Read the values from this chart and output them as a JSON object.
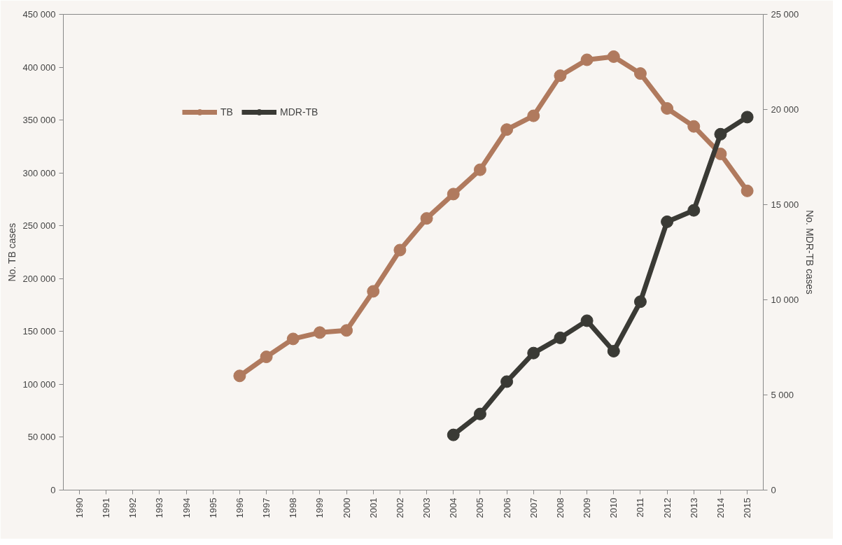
{
  "chart_data": {
    "type": "line",
    "xlabel": null,
    "ylabel": "No. TB cases",
    "y2label": "No. MDR-TB cases",
    "categories": [
      "1990",
      "1991",
      "1992",
      "1993",
      "1994",
      "1995",
      "1996",
      "1997",
      "1998",
      "1999",
      "2000",
      "2001",
      "2002",
      "2003",
      "2004",
      "2005",
      "2006",
      "2007",
      "2008",
      "2009",
      "2010",
      "2011",
      "2012",
      "2013",
      "2014",
      "2015"
    ],
    "series": [
      {
        "name": "TB",
        "color": "#b07a5e",
        "values": [
          null,
          null,
          null,
          null,
          null,
          null,
          108000,
          126000,
          143000,
          149000,
          151000,
          188000,
          227000,
          257000,
          280000,
          303000,
          341000,
          354000,
          392000,
          407000,
          410000,
          394000,
          361000,
          344000,
          318000,
          283000
        ]
      },
      {
        "name": "MDR-TB",
        "color": "#3a3a35",
        "axis": "y2",
        "values": [
          null,
          null,
          null,
          null,
          null,
          null,
          null,
          null,
          null,
          null,
          null,
          null,
          null,
          null,
          2900,
          4000,
          5700,
          7200,
          8000,
          8900,
          7300,
          9900,
          14100,
          14700,
          18700,
          19600
        ]
      }
    ],
    "ylim": [
      0,
      450000
    ],
    "yticks": [
      0,
      {
        "value": 50000,
        "label": "50 000"
      },
      {
        "value": 100000,
        "label": "100 000"
      },
      {
        "value": 150000,
        "label": "150 000"
      },
      {
        "value": 200000,
        "label": "200 000"
      },
      {
        "value": 250000,
        "label": "250 000"
      },
      {
        "value": 300000,
        "label": "300 000"
      },
      {
        "value": 350000,
        "label": "350 000"
      },
      {
        "value": 400000,
        "label": "400 000"
      },
      {
        "value": 450000,
        "label": "450 000"
      }
    ],
    "y2lim": [
      0,
      25000
    ],
    "y2ticks": [
      0,
      {
        "value": 5000,
        "label": "5 000"
      },
      {
        "value": 10000,
        "label": "10 000"
      },
      {
        "value": 15000,
        "label": "15 000"
      },
      {
        "value": 20000,
        "label": "20 000"
      },
      {
        "value": 25000,
        "label": "25 000"
      }
    ],
    "grid": false,
    "legend": "top left",
    "marker": "circle",
    "line_style": "solid"
  }
}
